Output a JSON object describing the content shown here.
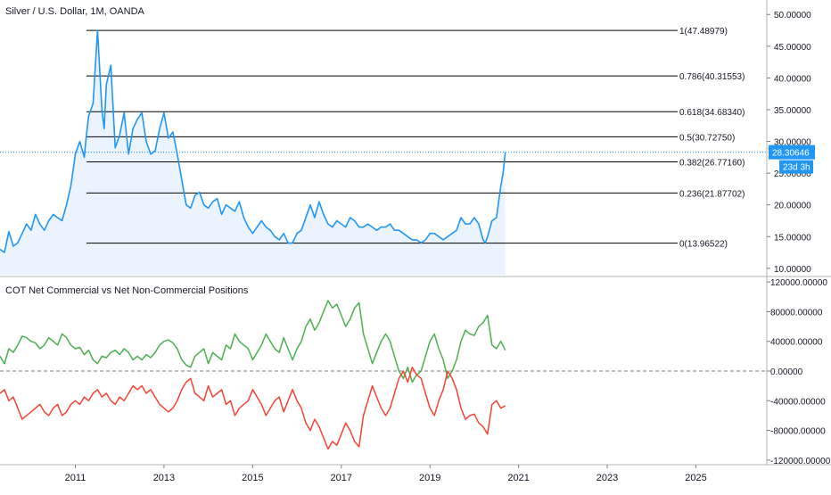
{
  "price_pane": {
    "title": "Silver / U.S. Dollar, 1M, OANDA",
    "last_price_label": "28.30646",
    "countdown_label": "23d 3h"
  },
  "cot_pane": {
    "title": "COT Net Commercial vs Net Non-Commercial Positions"
  },
  "colors": {
    "price_line": "#2196f3",
    "price_fill": "#e3f0fd",
    "fib_line": "#000000",
    "non_commercial": "#4caf50",
    "commercial": "#f44336",
    "zero_line": "#787b86",
    "badge_bg": "#2196f3"
  },
  "chart_data": [
    {
      "type": "line",
      "title": "Silver / U.S. Dollar, 1M, OANDA",
      "y_axis_ticks": [
        "50.00000",
        "45.00000",
        "40.00000",
        "35.00000",
        "30.00000",
        "25.00000",
        "20.00000",
        "15.00000",
        "10.00000"
      ],
      "y_tick_values": [
        50,
        45,
        40,
        35,
        30,
        25,
        20,
        15,
        10
      ],
      "x_axis_ticks": [
        "2011",
        "2013",
        "2015",
        "2017",
        "2019",
        "2021",
        "2023",
        "2025"
      ],
      "x_tick_values": [
        2011,
        2013,
        2015,
        2017,
        2019,
        2021,
        2023,
        2025
      ],
      "ylim": [
        9.0,
        52.0
      ],
      "xlim": [
        2009.3,
        2026.6
      ],
      "grid": false,
      "series": [
        {
          "x": [
            2009.3,
            2009.4,
            2009.5,
            2009.6,
            2009.7,
            2009.8,
            2009.9,
            2010.0,
            2010.1,
            2010.2,
            2010.3,
            2010.4,
            2010.5,
            2010.6,
            2010.7,
            2010.8,
            2010.9,
            2011.0,
            2011.1,
            2011.2,
            2011.25,
            2011.3,
            2011.4,
            2011.5,
            2011.6,
            2011.65,
            2011.7,
            2011.8,
            2011.9,
            2012.0,
            2012.1,
            2012.2,
            2012.3,
            2012.4,
            2012.5,
            2012.6,
            2012.7,
            2012.8,
            2012.9,
            2013.0,
            2013.1,
            2013.2,
            2013.3,
            2013.4,
            2013.5,
            2013.6,
            2013.7,
            2013.8,
            2013.9,
            2014.0,
            2014.1,
            2014.2,
            2014.3,
            2014.4,
            2014.5,
            2014.6,
            2014.7,
            2014.8,
            2014.9,
            2015.0,
            2015.1,
            2015.2,
            2015.3,
            2015.4,
            2015.5,
            2015.6,
            2015.7,
            2015.8,
            2015.9,
            2016.0,
            2016.1,
            2016.2,
            2016.3,
            2016.4,
            2016.5,
            2016.6,
            2016.7,
            2016.8,
            2016.9,
            2017.0,
            2017.1,
            2017.2,
            2017.3,
            2017.4,
            2017.5,
            2017.6,
            2017.7,
            2017.8,
            2017.9,
            2018.0,
            2018.1,
            2018.2,
            2018.3,
            2018.4,
            2018.5,
            2018.6,
            2018.7,
            2018.8,
            2018.9,
            2019.0,
            2019.1,
            2019.2,
            2019.3,
            2019.4,
            2019.5,
            2019.6,
            2019.7,
            2019.8,
            2019.9,
            2020.0,
            2020.1,
            2020.2,
            2020.25,
            2020.3,
            2020.4,
            2020.5,
            2020.6,
            2020.65,
            2020.7
          ],
          "y": [
            13.0,
            12.5,
            15.8,
            13.5,
            14.0,
            15.5,
            17.0,
            16.0,
            18.5,
            17.0,
            16.0,
            17.5,
            18.5,
            18.0,
            17.5,
            20.0,
            23.0,
            28.0,
            30.0,
            27.5,
            31.0,
            34.0,
            36.0,
            47.5,
            35.0,
            32.0,
            39.0,
            42.0,
            29.0,
            31.0,
            34.5,
            28.0,
            32.0,
            33.5,
            34.5,
            30.0,
            28.0,
            28.5,
            32.0,
            34.5,
            30.5,
            31.5,
            28.0,
            24.0,
            20.0,
            19.5,
            21.5,
            22.0,
            20.0,
            19.5,
            20.5,
            21.0,
            18.5,
            20.0,
            19.5,
            19.0,
            20.5,
            18.0,
            16.5,
            15.5,
            16.5,
            17.5,
            16.5,
            16.0,
            15.0,
            14.5,
            15.5,
            14.0,
            14.0,
            15.5,
            16.0,
            18.0,
            20.0,
            18.0,
            20.5,
            18.5,
            17.0,
            16.5,
            17.5,
            17.0,
            16.5,
            18.0,
            17.5,
            16.5,
            16.5,
            17.0,
            16.5,
            16.0,
            16.5,
            16.5,
            17.0,
            16.0,
            16.0,
            15.5,
            15.0,
            14.5,
            14.5,
            14.0,
            14.5,
            15.5,
            15.5,
            15.0,
            14.5,
            15.0,
            15.5,
            16.0,
            18.0,
            17.0,
            17.0,
            18.0,
            17.0,
            14.5,
            14.0,
            15.0,
            17.5,
            18.0,
            23.0,
            25.0,
            28.3
          ]
        }
      ],
      "fib_levels": [
        {
          "ratio": "1",
          "value": 47.48979,
          "label": "1(47.48979)"
        },
        {
          "ratio": "0.786",
          "value": 40.31553,
          "label": "0.786(40.31553)"
        },
        {
          "ratio": "0.618",
          "value": 34.6834,
          "label": "0.618(34.68340)"
        },
        {
          "ratio": "0.5",
          "value": 30.7275,
          "label": "0.5(30.72750)"
        },
        {
          "ratio": "0.382",
          "value": 26.7716,
          "label": "0.382(26.77160)"
        },
        {
          "ratio": "0.236",
          "value": 21.87702,
          "label": "0.236(21.87702)"
        },
        {
          "ratio": "0",
          "value": 13.96522,
          "label": "0(13.96522)"
        }
      ],
      "fib_x_start": 2011.25,
      "last_value": 28.30646
    },
    {
      "type": "line",
      "title": "COT Net Commercial vs Net Non-Commercial Positions",
      "y_axis_ticks": [
        "120000.00000",
        "80000.00000",
        "40000.00000",
        "0.00000",
        "-40000.00000",
        "-80000.00000",
        "-120000.00000"
      ],
      "y_tick_values": [
        120000,
        80000,
        40000,
        0,
        -40000,
        -80000,
        -120000
      ],
      "ylim": [
        -125000,
        125000
      ],
      "zero_line": true,
      "series": [
        {
          "name": "Net Non-Commercial",
          "x": [
            2009.3,
            2009.4,
            2009.5,
            2009.6,
            2009.7,
            2009.8,
            2009.9,
            2010.0,
            2010.1,
            2010.2,
            2010.3,
            2010.4,
            2010.5,
            2010.6,
            2010.7,
            2010.8,
            2010.9,
            2011.0,
            2011.1,
            2011.2,
            2011.3,
            2011.4,
            2011.5,
            2011.6,
            2011.7,
            2011.8,
            2011.9,
            2012.0,
            2012.1,
            2012.2,
            2012.3,
            2012.4,
            2012.5,
            2012.6,
            2012.7,
            2012.8,
            2012.9,
            2013.0,
            2013.1,
            2013.2,
            2013.3,
            2013.4,
            2013.5,
            2013.6,
            2013.7,
            2013.8,
            2013.9,
            2014.0,
            2014.1,
            2014.2,
            2014.3,
            2014.4,
            2014.5,
            2014.6,
            2014.7,
            2014.8,
            2014.9,
            2015.0,
            2015.1,
            2015.2,
            2015.3,
            2015.4,
            2015.5,
            2015.6,
            2015.7,
            2015.8,
            2015.9,
            2016.0,
            2016.1,
            2016.2,
            2016.3,
            2016.4,
            2016.5,
            2016.6,
            2016.7,
            2016.8,
            2016.9,
            2017.0,
            2017.1,
            2017.2,
            2017.3,
            2017.4,
            2017.5,
            2017.6,
            2017.7,
            2017.8,
            2017.9,
            2018.0,
            2018.1,
            2018.2,
            2018.3,
            2018.4,
            2018.5,
            2018.6,
            2018.7,
            2018.8,
            2018.9,
            2019.0,
            2019.1,
            2019.2,
            2019.3,
            2019.4,
            2019.5,
            2019.6,
            2019.7,
            2019.8,
            2019.9,
            2020.0,
            2020.1,
            2020.2,
            2020.3,
            2020.4,
            2020.5,
            2020.6,
            2020.7
          ],
          "y": [
            20000,
            10000,
            30000,
            25000,
            35000,
            47000,
            45000,
            40000,
            38000,
            30000,
            35000,
            45000,
            40000,
            35000,
            50000,
            45000,
            35000,
            30000,
            32000,
            22000,
            28000,
            15000,
            10000,
            20000,
            18000,
            25000,
            28000,
            22000,
            30000,
            25000,
            15000,
            20000,
            15000,
            22000,
            18000,
            25000,
            35000,
            40000,
            42000,
            38000,
            30000,
            15000,
            8000,
            5000,
            20000,
            25000,
            30000,
            10000,
            25000,
            20000,
            15000,
            35000,
            30000,
            50000,
            40000,
            35000,
            30000,
            15000,
            25000,
            35000,
            50000,
            40000,
            30000,
            25000,
            45000,
            30000,
            15000,
            30000,
            40000,
            60000,
            70000,
            55000,
            65000,
            80000,
            95000,
            85000,
            90000,
            75000,
            60000,
            70000,
            85000,
            92000,
            50000,
            30000,
            10000,
            25000,
            40000,
            50000,
            40000,
            20000,
            0,
            -10000,
            5000,
            -15000,
            -5000,
            0,
            20000,
            40000,
            50000,
            30000,
            15000,
            -10000,
            0,
            15000,
            40000,
            55000,
            50000,
            48000,
            60000,
            65000,
            75000,
            35000,
            30000,
            40000,
            28000
          ]
        },
        {
          "name": "Net Commercial",
          "x": [
            2009.3,
            2009.4,
            2009.5,
            2009.6,
            2009.7,
            2009.8,
            2009.9,
            2010.0,
            2010.1,
            2010.2,
            2010.3,
            2010.4,
            2010.5,
            2010.6,
            2010.7,
            2010.8,
            2010.9,
            2011.0,
            2011.1,
            2011.2,
            2011.3,
            2011.4,
            2011.5,
            2011.6,
            2011.7,
            2011.8,
            2011.9,
            2012.0,
            2012.1,
            2012.2,
            2012.3,
            2012.4,
            2012.5,
            2012.6,
            2012.7,
            2012.8,
            2012.9,
            2013.0,
            2013.1,
            2013.2,
            2013.3,
            2013.4,
            2013.5,
            2013.6,
            2013.7,
            2013.8,
            2013.9,
            2014.0,
            2014.1,
            2014.2,
            2014.3,
            2014.4,
            2014.5,
            2014.6,
            2014.7,
            2014.8,
            2014.9,
            2015.0,
            2015.1,
            2015.2,
            2015.3,
            2015.4,
            2015.5,
            2015.6,
            2015.7,
            2015.8,
            2015.9,
            2016.0,
            2016.1,
            2016.2,
            2016.3,
            2016.4,
            2016.5,
            2016.6,
            2016.7,
            2016.8,
            2016.9,
            2017.0,
            2017.1,
            2017.2,
            2017.3,
            2017.4,
            2017.5,
            2017.6,
            2017.7,
            2017.8,
            2017.9,
            2018.0,
            2018.1,
            2018.2,
            2018.3,
            2018.4,
            2018.5,
            2018.6,
            2018.7,
            2018.8,
            2018.9,
            2019.0,
            2019.1,
            2019.2,
            2019.3,
            2019.4,
            2019.5,
            2019.6,
            2019.7,
            2019.8,
            2019.9,
            2020.0,
            2020.1,
            2020.2,
            2020.3,
            2020.4,
            2020.5,
            2020.6,
            2020.7
          ],
          "y": [
            -30000,
            -25000,
            -40000,
            -35000,
            -50000,
            -65000,
            -60000,
            -55000,
            -50000,
            -45000,
            -55000,
            -60000,
            -50000,
            -45000,
            -60000,
            -55000,
            -45000,
            -40000,
            -45000,
            -35000,
            -40000,
            -30000,
            -25000,
            -35000,
            -30000,
            -40000,
            -45000,
            -35000,
            -40000,
            -30000,
            -20000,
            -25000,
            -20000,
            -30000,
            -25000,
            -35000,
            -45000,
            -50000,
            -55000,
            -50000,
            -40000,
            -25000,
            -15000,
            -10000,
            -30000,
            -35000,
            -40000,
            -20000,
            -35000,
            -30000,
            -25000,
            -45000,
            -40000,
            -60000,
            -50000,
            -45000,
            -40000,
            -25000,
            -35000,
            -45000,
            -60000,
            -50000,
            -40000,
            -35000,
            -55000,
            -40000,
            -25000,
            -40000,
            -50000,
            -70000,
            -80000,
            -65000,
            -75000,
            -90000,
            -105000,
            -95000,
            -100000,
            -85000,
            -70000,
            -80000,
            -95000,
            -102000,
            -60000,
            -40000,
            -20000,
            -35000,
            -50000,
            -60000,
            -50000,
            -30000,
            -10000,
            0,
            -15000,
            5000,
            -5000,
            -10000,
            -30000,
            -50000,
            -60000,
            -40000,
            -25000,
            0,
            -10000,
            -25000,
            -50000,
            -65000,
            -60000,
            -58000,
            -70000,
            -75000,
            -85000,
            -45000,
            -40000,
            -50000,
            -47000
          ]
        }
      ]
    }
  ]
}
